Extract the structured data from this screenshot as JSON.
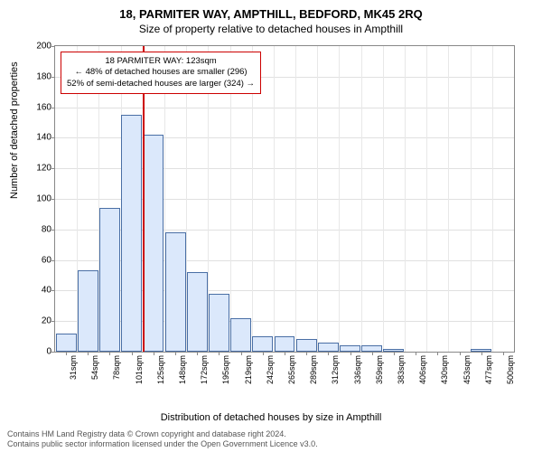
{
  "title_main": "18, PARMITER WAY, AMPTHILL, BEDFORD, MK45 2RQ",
  "title_sub": "Size of property relative to detached houses in Ampthill",
  "ylabel": "Number of detached properties",
  "xlabel": "Distribution of detached houses by size in Ampthill",
  "footer_line1": "Contains HM Land Registry data © Crown copyright and database right 2024.",
  "footer_line2": "Contains public sector information licensed under the Open Government Licence v3.0.",
  "chart": {
    "type": "histogram",
    "background_color": "#ffffff",
    "grid_color": "#e0e0e0",
    "axis_color": "#888888",
    "bar_fill": "#dbe8fb",
    "bar_stroke": "#4a6fa5",
    "marker_color": "#cc0000",
    "annotation_border": "#cc0000",
    "ylim": [
      0,
      200
    ],
    "yticks": [
      0,
      20,
      40,
      60,
      80,
      100,
      120,
      140,
      160,
      180,
      200
    ],
    "x_categories": [
      "31sqm",
      "54sqm",
      "78sqm",
      "101sqm",
      "125sqm",
      "148sqm",
      "172sqm",
      "195sqm",
      "219sqm",
      "242sqm",
      "265sqm",
      "289sqm",
      "312sqm",
      "336sqm",
      "359sqm",
      "383sqm",
      "406sqm",
      "430sqm",
      "453sqm",
      "477sqm",
      "500sqm"
    ],
    "bar_values": [
      12,
      53,
      94,
      155,
      142,
      78,
      52,
      38,
      22,
      10,
      10,
      8,
      6,
      4,
      4,
      2,
      0,
      0,
      0,
      2,
      0
    ],
    "marker_x_index": 4,
    "annotation": {
      "line1": "18 PARMITER WAY: 123sqm",
      "line2": "← 48% of detached houses are smaller (296)",
      "line3": "52% of semi-detached houses are larger (324) →"
    },
    "title_fontsize": 13,
    "subtitle_fontsize": 12,
    "label_fontsize": 11,
    "tick_fontsize": 10,
    "annotation_fontsize": 9.5,
    "bar_width_ratio": 0.95
  }
}
